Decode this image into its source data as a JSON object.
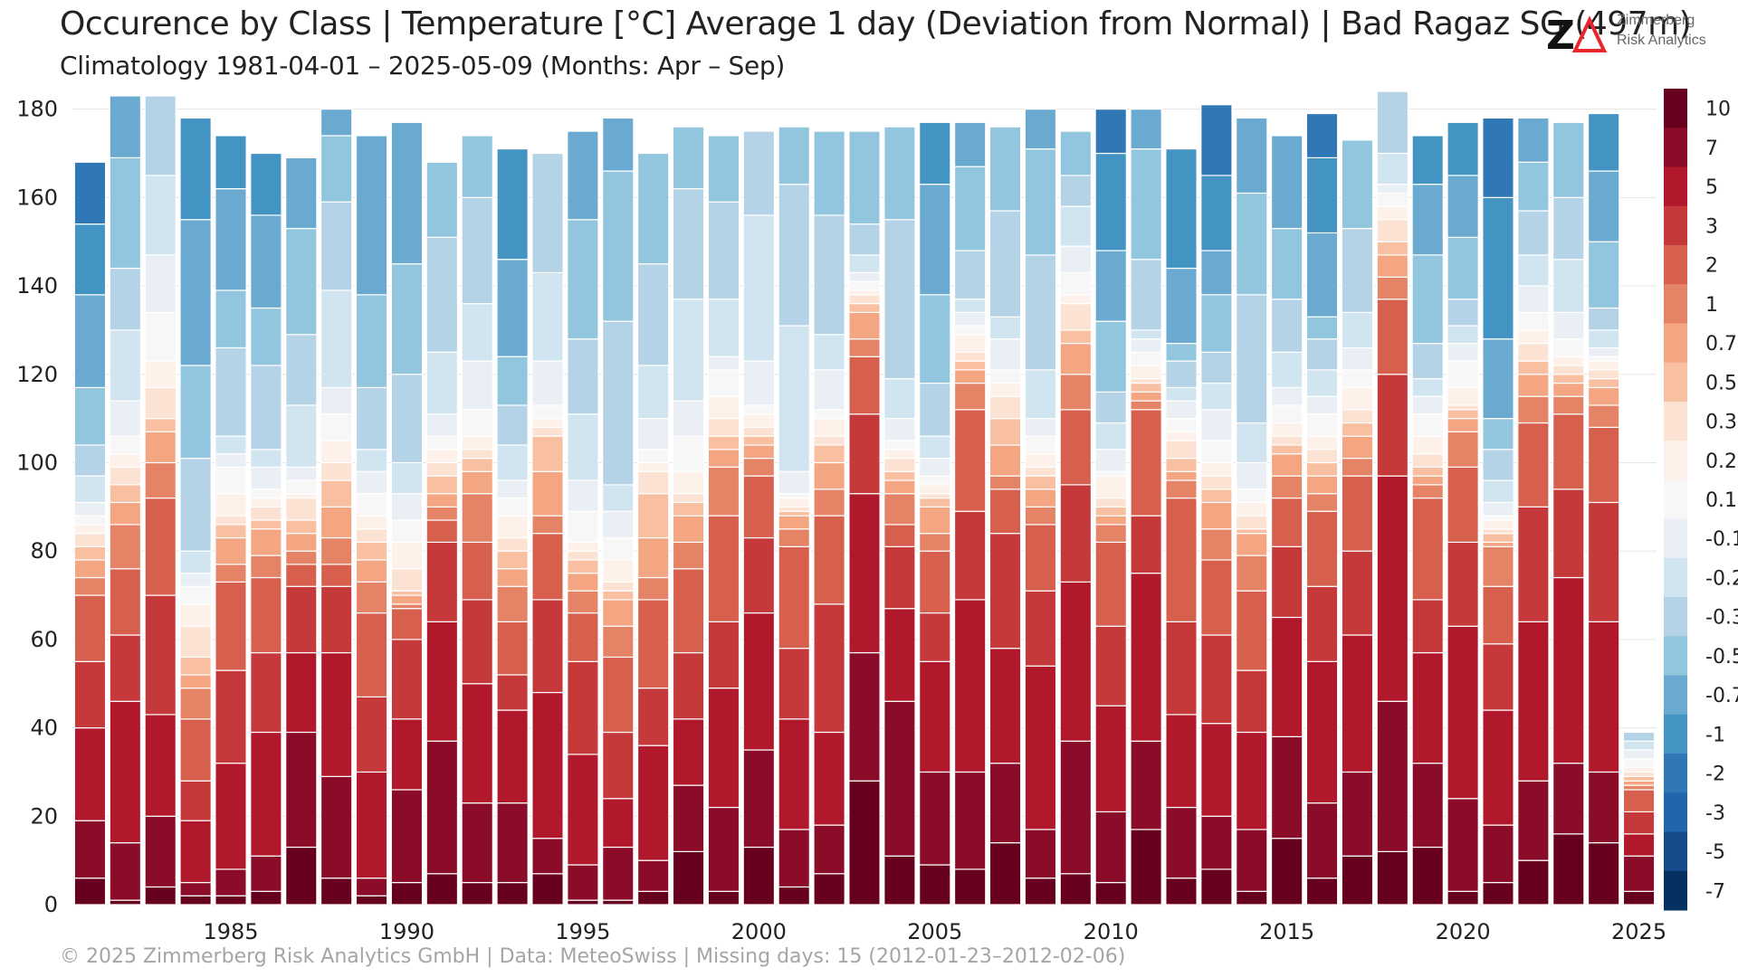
{
  "title": "Occurence by Class | Temperature [°C] Average 1 day (Deviation from Normal) | Bad Ragaz  SG (497m)",
  "subtitle": "Climatology 1981-04-01 – 2025-05-09 (Months: Apr – Sep)",
  "footer": "©  2025 Zimmerberg Risk Analytics GmbH | Data: MeteoSwiss | Missing days: 15 (2012-01-23–2012-02-06)",
  "logo": {
    "mark": "Z",
    "line1": "Zimmerberg",
    "line2": "Risk Analytics"
  },
  "colors": {
    "accent": "#e8262b",
    "grid": "#e6e6e6"
  },
  "chart_data": {
    "type": "bar",
    "stacked": true,
    "x": [
      1981,
      1982,
      1983,
      1984,
      1985,
      1986,
      1987,
      1988,
      1989,
      1990,
      1991,
      1992,
      1993,
      1994,
      1995,
      1996,
      1997,
      1998,
      1999,
      2000,
      2001,
      2002,
      2003,
      2004,
      2005,
      2006,
      2007,
      2008,
      2009,
      2010,
      2011,
      2012,
      2013,
      2014,
      2015,
      2016,
      2017,
      2018,
      2019,
      2020,
      2021,
      2022,
      2023,
      2024,
      2025
    ],
    "xticks": [
      1985,
      1990,
      1995,
      2000,
      2005,
      2010,
      2015,
      2020,
      2025
    ],
    "ylim": [
      0,
      183
    ],
    "yticks": [
      0,
      20,
      40,
      60,
      80,
      100,
      120,
      140,
      160,
      180
    ],
    "grid": true,
    "classes": [
      "10",
      "7",
      "5",
      "3",
      "2",
      "1",
      "0.7",
      "0.5",
      "0.3",
      "0.2",
      "0.1",
      "-0.1",
      "-0.2",
      "-0.3",
      "-0.5",
      "-0.7",
      "-1",
      "-2",
      "-3",
      "-5",
      "-7"
    ],
    "class_colors": [
      "#67001f",
      "#8a0c28",
      "#b2182b",
      "#c5393a",
      "#d6604d",
      "#e58367",
      "#f4a582",
      "#f8bfa1",
      "#fbe2d3",
      "#fdf1e9",
      "#f7f7f7",
      "#e9eff5",
      "#d1e5f0",
      "#b5d3e6",
      "#92c5de",
      "#6aaad1",
      "#4393c3",
      "#3078b5",
      "#2166ac",
      "#154a8b",
      "#053061"
    ],
    "cumulative_boundaries": [
      [
        0,
        6,
        19,
        40,
        55,
        70,
        74,
        78,
        81,
        84,
        86,
        88,
        91,
        97,
        104,
        117,
        138,
        154,
        168
      ],
      [
        0,
        1,
        14,
        46,
        61,
        76,
        86,
        91,
        95,
        99,
        102,
        106,
        114,
        130,
        144,
        169,
        183
      ],
      [
        0,
        4,
        20,
        43,
        70,
        92,
        100,
        107,
        110,
        117,
        123,
        134,
        147,
        165,
        183
      ],
      [
        0,
        2,
        5,
        19,
        28,
        42,
        49,
        52,
        56,
        63,
        68,
        72,
        75,
        80,
        101,
        122,
        155,
        178
      ],
      [
        0,
        2,
        8,
        32,
        53,
        73,
        77,
        83,
        86,
        88,
        93,
        99,
        102,
        106,
        126,
        139,
        162,
        174
      ],
      [
        0,
        3,
        11,
        39,
        57,
        74,
        79,
        85,
        87,
        90,
        92,
        94,
        99,
        103,
        122,
        135,
        156,
        170
      ],
      [
        0,
        13,
        39,
        57,
        72,
        77,
        80,
        84,
        87,
        92,
        93,
        96,
        99,
        113,
        129,
        153,
        169
      ],
      [
        0,
        6,
        29,
        57,
        72,
        77,
        83,
        90,
        96,
        100,
        105,
        111,
        117,
        139,
        159,
        174,
        180
      ],
      [
        0,
        2,
        6,
        30,
        47,
        66,
        73,
        78,
        82,
        85,
        88,
        93,
        98,
        103,
        117,
        138,
        174
      ],
      [
        0,
        5,
        26,
        42,
        60,
        67,
        68,
        70,
        71,
        76,
        82,
        87,
        93,
        100,
        120,
        145,
        177
      ],
      [
        0,
        7,
        37,
        64,
        82,
        87,
        90,
        93,
        97,
        100,
        103,
        106,
        111,
        125,
        151,
        168
      ],
      [
        0,
        5,
        23,
        50,
        69,
        82,
        93,
        98,
        101,
        103,
        106,
        112,
        123,
        136,
        160,
        174
      ],
      [
        0,
        5,
        23,
        44,
        52,
        64,
        72,
        76,
        80,
        83,
        88,
        92,
        96,
        104,
        113,
        124,
        146,
        171
      ],
      [
        0,
        7,
        15,
        48,
        69,
        84,
        88,
        98,
        106,
        108,
        110,
        113,
        123,
        143,
        170
      ],
      [
        0,
        1,
        9,
        34,
        55,
        66,
        71,
        75,
        78,
        80,
        82,
        89,
        96,
        111,
        128,
        155,
        175
      ],
      [
        0,
        1,
        13,
        24,
        39,
        56,
        63,
        69,
        71,
        73,
        78,
        83,
        89,
        95,
        132,
        166,
        178
      ],
      [
        0,
        3,
        10,
        36,
        49,
        69,
        74,
        83,
        93,
        98,
        100,
        103,
        110,
        122,
        145,
        170
      ],
      [
        0,
        12,
        27,
        42,
        57,
        76,
        82,
        88,
        91,
        93,
        98,
        106,
        114,
        137,
        162,
        176
      ],
      [
        0,
        3,
        22,
        49,
        64,
        88,
        99,
        103,
        106,
        110,
        115,
        121,
        124,
        137,
        159,
        174
      ],
      [
        0,
        13,
        35,
        66,
        83,
        97,
        101,
        104,
        106,
        108,
        111,
        113,
        123,
        156,
        175
      ],
      [
        0,
        4,
        17,
        42,
        58,
        81,
        85,
        88,
        89,
        90,
        92,
        93,
        98,
        131,
        163,
        176
      ],
      [
        0,
        7,
        18,
        39,
        68,
        88,
        94,
        100,
        104,
        106,
        110,
        112,
        121,
        129,
        156,
        175
      ],
      [
        0,
        28,
        57,
        93,
        111,
        124,
        128,
        134,
        136,
        138,
        139,
        141,
        143,
        147,
        154,
        175
      ],
      [
        0,
        11,
        46,
        67,
        81,
        86,
        93,
        96,
        98,
        101,
        103,
        105,
        110,
        119,
        155,
        176
      ],
      [
        0,
        9,
        30,
        55,
        66,
        80,
        84,
        90,
        92,
        93,
        95,
        97,
        101,
        106,
        118,
        138,
        163,
        177
      ],
      [
        0,
        8,
        30,
        69,
        89,
        112,
        118,
        121,
        123,
        125,
        129,
        131,
        134,
        137,
        148,
        167,
        177
      ],
      [
        0,
        14,
        32,
        58,
        84,
        94,
        97,
        104,
        110,
        115,
        118,
        121,
        128,
        133,
        157,
        176
      ],
      [
        0,
        6,
        17,
        54,
        71,
        86,
        90,
        94,
        97,
        99,
        102,
        106,
        110,
        121,
        147,
        171,
        180
      ],
      [
        0,
        7,
        37,
        73,
        95,
        112,
        120,
        127,
        130,
        136,
        138,
        143,
        149,
        158,
        165,
        175
      ],
      [
        0,
        5,
        21,
        45,
        63,
        82,
        86,
        88,
        90,
        92,
        97,
        98,
        103,
        109,
        116,
        132,
        148,
        170,
        180
      ],
      [
        0,
        17,
        37,
        75,
        88,
        112,
        114,
        116,
        118,
        119,
        122,
        125,
        128,
        130,
        146,
        171,
        180
      ],
      [
        0,
        6,
        22,
        43,
        64,
        92,
        96,
        98,
        101,
        105,
        107,
        110,
        114,
        117,
        123,
        127,
        144,
        171
      ],
      [
        0,
        8,
        20,
        41,
        61,
        78,
        85,
        91,
        94,
        97,
        100,
        105,
        112,
        118,
        125,
        138,
        148,
        165,
        181
      ],
      [
        0,
        3,
        17,
        39,
        53,
        71,
        79,
        84,
        85,
        88,
        91,
        94,
        100,
        109,
        138,
        161,
        178
      ],
      [
        0,
        15,
        38,
        65,
        81,
        92,
        97,
        102,
        104,
        106,
        109,
        113,
        117,
        125,
        137,
        153,
        174
      ],
      [
        0,
        6,
        23,
        55,
        72,
        89,
        93,
        97,
        100,
        103,
        106,
        111,
        115,
        121,
        128,
        133,
        152,
        169,
        179
      ],
      [
        0,
        11,
        30,
        61,
        80,
        97,
        101,
        106,
        109,
        112,
        117,
        121,
        126,
        134,
        153,
        173
      ],
      [
        0,
        12,
        46,
        97,
        120,
        137,
        142,
        147,
        150,
        155,
        158,
        161,
        163,
        170,
        184
      ],
      [
        0,
        13,
        32,
        57,
        69,
        92,
        95,
        97,
        99,
        102,
        106,
        111,
        115,
        119,
        127,
        147,
        163,
        174
      ],
      [
        0,
        3,
        24,
        63,
        82,
        99,
        107,
        110,
        112,
        113,
        117,
        123,
        127,
        131,
        137,
        151,
        165,
        177
      ],
      [
        0,
        5,
        18,
        44,
        59,
        72,
        81,
        82,
        84,
        85,
        87,
        88,
        91,
        96,
        103,
        110,
        128,
        160,
        178
      ],
      [
        0,
        10,
        28,
        64,
        90,
        109,
        115,
        120,
        123,
        127,
        130,
        134,
        140,
        147,
        157,
        168,
        178
      ],
      [
        0,
        16,
        32,
        74,
        94,
        111,
        115,
        118,
        120,
        122,
        124,
        128,
        134,
        146,
        160,
        177
      ],
      [
        0,
        14,
        30,
        64,
        91,
        108,
        113,
        117,
        119,
        121,
        123,
        124,
        126,
        130,
        135,
        150,
        166,
        179
      ],
      [
        0,
        3,
        11,
        16,
        21,
        26,
        27,
        28,
        29,
        30,
        31,
        33,
        35,
        37,
        39,
        39
      ]
    ]
  }
}
